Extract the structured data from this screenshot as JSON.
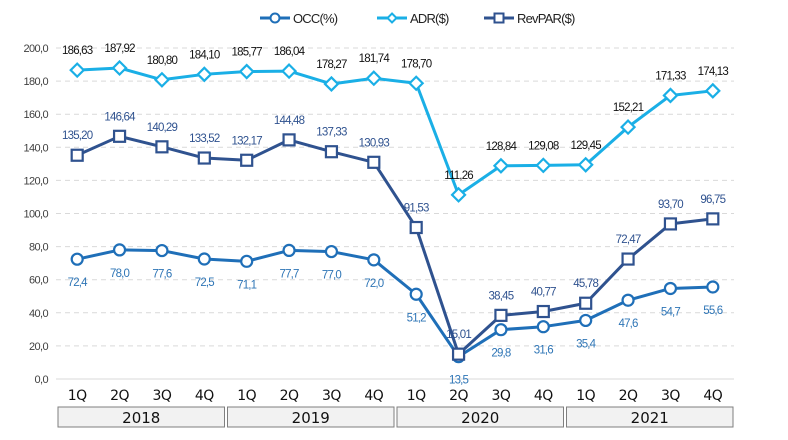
{
  "chart_data": {
    "type": "line",
    "title": "",
    "xlabel": "",
    "ylabel": "",
    "ylim": [
      0,
      200
    ],
    "yticks": [
      "0,0",
      "20,0",
      "40,0",
      "60,0",
      "80,0",
      "100,0",
      "120,0",
      "140,0",
      "160,0",
      "180,0",
      "200,0"
    ],
    "grid": true,
    "legend_position": "top-center",
    "categories": [
      "1Q",
      "2Q",
      "3Q",
      "4Q",
      "1Q",
      "2Q",
      "3Q",
      "4Q",
      "1Q",
      "2Q",
      "3Q",
      "4Q",
      "1Q",
      "2Q",
      "3Q",
      "4Q"
    ],
    "year_groups": [
      {
        "label": "2018",
        "span": 4
      },
      {
        "label": "2019",
        "span": 4
      },
      {
        "label": "2020",
        "span": 4
      },
      {
        "label": "2021",
        "span": 4
      }
    ],
    "series": [
      {
        "name": "OCC(%)",
        "color": "#1F6FB8",
        "marker": "circle",
        "label_color": "#2E75B6",
        "label_position": "below",
        "values": [
          72.4,
          78.0,
          77.6,
          72.5,
          71.1,
          77.7,
          77.0,
          72.0,
          51.2,
          13.5,
          29.8,
          31.6,
          35.4,
          47.6,
          54.7,
          55.6
        ],
        "labels": [
          "72,4",
          "78,0",
          "77,6",
          "72,5",
          "71,1",
          "77,7",
          "77,0",
          "72,0",
          "51,2",
          "13,5",
          "29,8",
          "31,6",
          "35,4",
          "47,6",
          "54,7",
          "55,6"
        ]
      },
      {
        "name": "ADR($)",
        "color": "#1AAFE6",
        "marker": "diamond",
        "label_color": "#111111",
        "label_position": "above",
        "values": [
          186.63,
          187.92,
          180.8,
          184.1,
          185.77,
          186.04,
          178.27,
          181.74,
          178.7,
          111.26,
          128.84,
          129.08,
          129.45,
          152.21,
          171.33,
          174.13
        ],
        "labels": [
          "186,63",
          "187,92",
          "180,80",
          "184,10",
          "185,77",
          "186,04",
          "178,27",
          "181,74",
          "178,70",
          "111,26",
          "128,84",
          "129,08",
          "129,45",
          "152,21",
          "171,33",
          "174,13"
        ]
      },
      {
        "name": "RevPAR($)",
        "color": "#2F528F",
        "marker": "square",
        "label_color": "#2F528F",
        "label_position": "above",
        "values": [
          135.2,
          146.64,
          140.29,
          133.52,
          132.17,
          144.48,
          137.33,
          130.93,
          91.53,
          15.01,
          38.45,
          40.77,
          45.78,
          72.47,
          93.7,
          96.75
        ],
        "labels": [
          "135,20",
          "146,64",
          "140,29",
          "133,52",
          "132,17",
          "144,48",
          "137,33",
          "130,93",
          "91,53",
          "15,01",
          "38,45",
          "40,77",
          "45,78",
          "72,47",
          "93,70",
          "96,75"
        ]
      }
    ]
  }
}
